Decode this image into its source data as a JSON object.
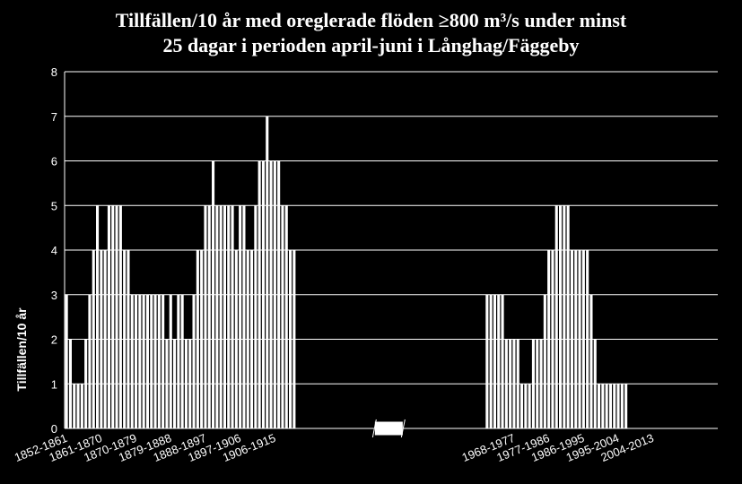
{
  "chart_data": {
    "type": "bar",
    "title_line1": "Tillfällen/10 år med oreglerade flöden ≥800 m³/s under minst",
    "title_line2": "25 dagar i perioden april-juni i Långhag/Fäggeby",
    "ylabel": "Tillfällen/10 år",
    "xlabel": "",
    "ylim": [
      0,
      8
    ],
    "yticks": [
      0,
      1,
      2,
      3,
      4,
      5,
      6,
      7,
      8
    ],
    "grid": true,
    "colors": {
      "background": "#000000",
      "bar": "#ffffff",
      "grid": "#ffffff",
      "text": "#ffffff"
    },
    "segments": [
      {
        "start_year": 1852,
        "label": "",
        "values": [
          3,
          2,
          1,
          1,
          1,
          2,
          3,
          4,
          5,
          4,
          4,
          5,
          5,
          5,
          5,
          4,
          4,
          3,
          3,
          3,
          3,
          3,
          3,
          3,
          3,
          3,
          2,
          3,
          2,
          3,
          3,
          2,
          2,
          3,
          4,
          4,
          5,
          5,
          6,
          5,
          5,
          5,
          5,
          5,
          4,
          5,
          5,
          4,
          4,
          5,
          6,
          6,
          7,
          6,
          6,
          6,
          5,
          5,
          4,
          4
        ]
      },
      {
        "start_year": 1961,
        "label": "",
        "values": [
          3,
          3,
          3,
          3,
          3,
          2,
          2,
          2,
          2,
          1,
          1,
          1,
          2,
          2,
          2,
          3,
          4,
          4,
          5,
          5,
          5,
          5,
          4,
          4,
          4,
          4,
          4,
          3,
          2,
          1,
          1,
          1,
          1,
          1,
          1,
          1,
          1
        ]
      }
    ],
    "tick_labels": [
      "1852-1861",
      "1861-1870",
      "1870-1879",
      "1879-1888",
      "1888-1897",
      "1897-1906",
      "1906-1915",
      "1968-1977",
      "1977-1986",
      "1986-1995",
      "1995-2004",
      "2004-2013"
    ],
    "tick_starts": [
      1852,
      1861,
      1870,
      1879,
      1888,
      1897,
      1906,
      1968,
      1977,
      1986,
      1995,
      2004
    ]
  }
}
